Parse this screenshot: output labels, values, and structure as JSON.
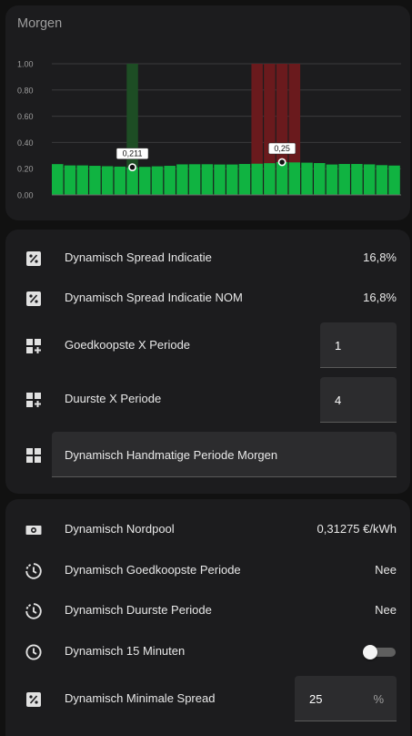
{
  "chart_card": {
    "title": "Morgen"
  },
  "chart_data": {
    "type": "bar",
    "y_ticks": [
      "0.00",
      "0.20",
      "0.40",
      "0.60",
      "0.80",
      "1.00"
    ],
    "ylim": [
      0,
      1.0
    ],
    "price_values": [
      0.235,
      0.225,
      0.225,
      0.222,
      0.219,
      0.216,
      0.211,
      0.214,
      0.218,
      0.222,
      0.233,
      0.234,
      0.234,
      0.232,
      0.232,
      0.236,
      0.238,
      0.242,
      0.25,
      0.248,
      0.246,
      0.243,
      0.232,
      0.236,
      0.236,
      0.233,
      0.227,
      0.224
    ],
    "cheapest_marker_indices": [
      6
    ],
    "expensive_marker_indices": [
      16,
      17,
      18,
      19
    ],
    "marker_value": 1.0,
    "price_color": "#10b341",
    "cheap_marker_color": "#1d4d24",
    "expensive_marker_color": "#6a1a1d",
    "annotations": [
      {
        "label": "0,211",
        "index": 6,
        "value": 0.211
      },
      {
        "label": "0,25",
        "index": 18,
        "value": 0.25
      }
    ]
  },
  "settings_card": {
    "spread": {
      "label": "Dynamisch Spread Indicatie",
      "value": "16,8%"
    },
    "spread_nom": {
      "label": "Dynamisch Spread Indicatie NOM",
      "value": "16,8%"
    },
    "cheapest_x": {
      "label": "Goedkoopste X Periode",
      "value": "1"
    },
    "expensive_x": {
      "label": "Duurste X Periode",
      "value": "4"
    },
    "manual_period": {
      "label": "Dynamisch Handmatige Periode Morgen"
    }
  },
  "status_card": {
    "nordpool": {
      "label": "Dynamisch Nordpool",
      "value": "0,31275 €/kWh"
    },
    "cheapest_period": {
      "label": "Dynamisch Goedkoopste Periode",
      "value": "Nee"
    },
    "expensive_period": {
      "label": "Dynamisch Duurste Periode",
      "value": "Nee"
    },
    "quarter_hour": {
      "label": "Dynamisch 15 Minuten",
      "state": "off"
    },
    "min_spread": {
      "label": "Dynamisch Minimale Spread",
      "value": "25",
      "unit": "%"
    }
  },
  "icons": {
    "percent": "percent-box-icon",
    "grid_plus": "view-grid-plus-icon",
    "grid": "view-grid-icon",
    "cash": "cash-icon",
    "timer": "timer-sand-icon",
    "clock": "clock-outline-icon"
  }
}
